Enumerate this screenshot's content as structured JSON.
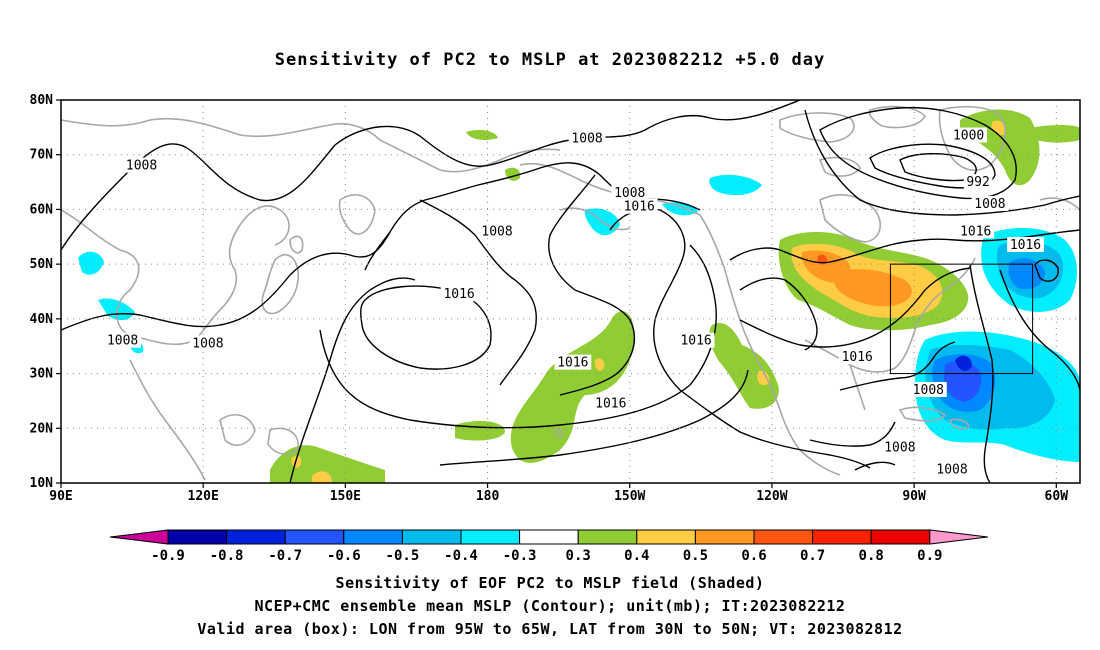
{
  "title": "Sensitivity of PC2 to MSLP at 2023082212 +5.0 day",
  "map": {
    "lon_range": [
      90,
      305
    ],
    "lat_range": [
      10,
      80
    ],
    "lat_labels": [
      "80N",
      "70N",
      "60N",
      "50N",
      "40N",
      "30N",
      "20N",
      "10N"
    ],
    "lat_values": [
      80,
      70,
      60,
      50,
      40,
      30,
      20,
      10
    ],
    "lon_labels": [
      "90E",
      "120E",
      "150E",
      "180",
      "150W",
      "120W",
      "90W",
      "60W"
    ],
    "lon_values": [
      90,
      120,
      150,
      180,
      210,
      240,
      270,
      300
    ],
    "valid_box": {
      "lon": [
        265,
        295
      ],
      "lat": [
        30,
        50
      ]
    },
    "isobar_labels": [
      {
        "text": "1008",
        "lon": 107,
        "lat": 68
      },
      {
        "text": "1008",
        "lon": 182,
        "lat": 56
      },
      {
        "text": "1008",
        "lon": 201,
        "lat": 73
      },
      {
        "text": "1008",
        "lon": 210,
        "lat": 63
      },
      {
        "text": "1016",
        "lon": 212,
        "lat": 60.5
      },
      {
        "text": "1016",
        "lon": 174,
        "lat": 44.5
      },
      {
        "text": "1016",
        "lon": 198,
        "lat": 32
      },
      {
        "text": "1016",
        "lon": 206,
        "lat": 24.5
      },
      {
        "text": "1016",
        "lon": 224,
        "lat": 36
      },
      {
        "text": "1016",
        "lon": 258,
        "lat": 33
      },
      {
        "text": "1008",
        "lon": 103,
        "lat": 36
      },
      {
        "text": "1008",
        "lon": 121,
        "lat": 35.5
      },
      {
        "text": "1000",
        "lon": 281.5,
        "lat": 73.5
      },
      {
        "text": "992",
        "lon": 283.5,
        "lat": 65
      },
      {
        "text": "1008",
        "lon": 286,
        "lat": 61
      },
      {
        "text": "1016",
        "lon": 283,
        "lat": 56
      },
      {
        "text": "1016",
        "lon": 293.5,
        "lat": 53.5
      },
      {
        "text": "1008",
        "lon": 273,
        "lat": 27
      },
      {
        "text": "1008",
        "lon": 267,
        "lat": 16.5
      },
      {
        "text": "1008",
        "lon": 278,
        "lat": 12.5
      }
    ]
  },
  "colorbar": {
    "labels": [
      "-0.9",
      "-0.8",
      "-0.7",
      "-0.6",
      "-0.5",
      "-0.4",
      "-0.3",
      "0.3",
      "0.4",
      "0.5",
      "0.6",
      "0.7",
      "0.8",
      "0.9"
    ],
    "colors": [
      "#0000a8",
      "#0022dd",
      "#2255ff",
      "#0088ff",
      "#00bbee",
      "#00eeff",
      "#ffffff",
      "#90cc33",
      "#ffcc44",
      "#ff9922",
      "#ff5511",
      "#ff2200",
      "#ee0000"
    ],
    "low_end_color": "#cc0099",
    "high_end_color": "#ff99cc"
  },
  "captions": {
    "line1": "Sensitivity of EOF PC2 to MSLP field (Shaded)",
    "line2": "NCEP+CMC ensemble mean MSLP (Contour); unit(mb); IT:2023082212",
    "line3": "Valid area (box): LON from 95W to 65W, LAT from 30N to 50N; VT: 2023082812"
  }
}
